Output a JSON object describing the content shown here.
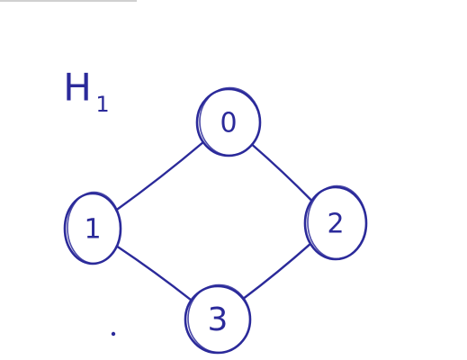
{
  "graph": {
    "title": "H",
    "subscript": "1",
    "ink_color": "#2b2a9a",
    "nodes": [
      {
        "id": "0",
        "label": "0"
      },
      {
        "id": "1",
        "label": "1"
      },
      {
        "id": "2",
        "label": "2"
      },
      {
        "id": "3",
        "label": "3"
      }
    ],
    "edges": [
      {
        "from": "0",
        "to": "1"
      },
      {
        "from": "0",
        "to": "2"
      },
      {
        "from": "1",
        "to": "3"
      },
      {
        "from": "2",
        "to": "3"
      }
    ]
  }
}
